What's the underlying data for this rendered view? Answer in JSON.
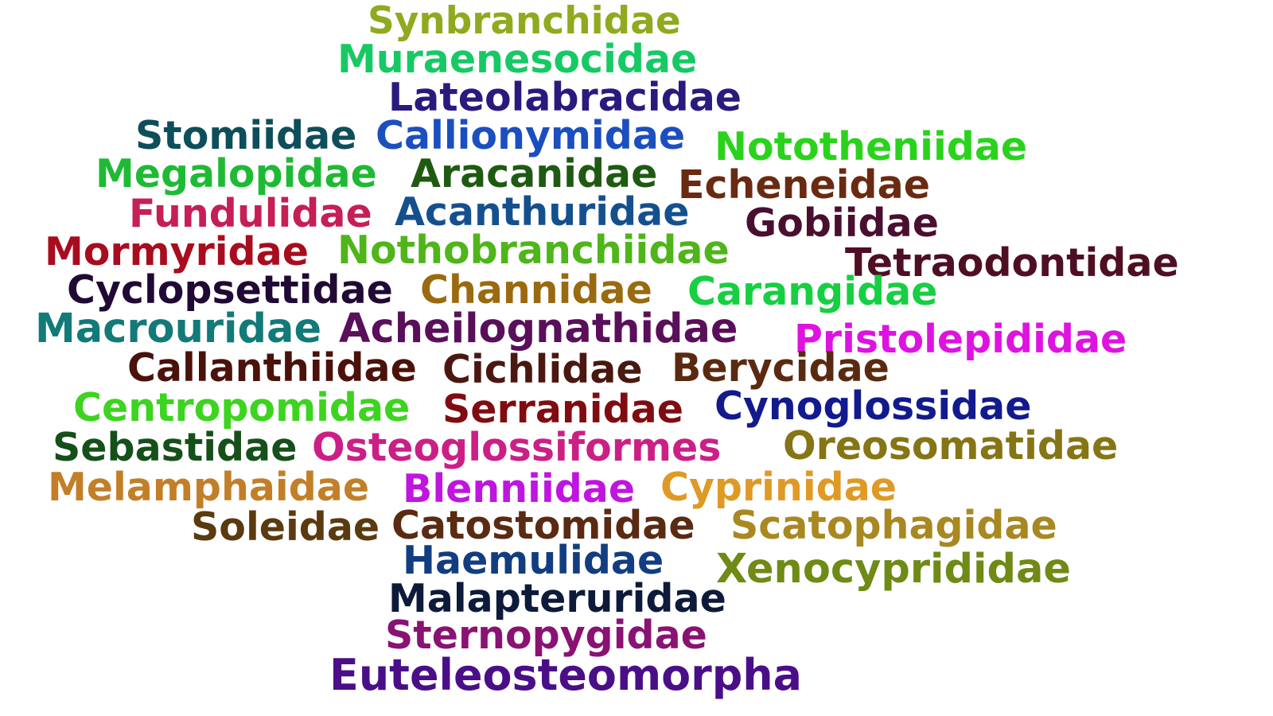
{
  "words": [
    {
      "text": "Synbranchidae",
      "color": "#8faa1f"
    },
    {
      "text": "Muraenesocidae",
      "color": "#17c964"
    },
    {
      "text": "Lateolabracidae",
      "color": "#2a1a7e"
    },
    {
      "text": "Stomiidae",
      "color": "#0e4e5a"
    },
    {
      "text": "Callionymidae",
      "color": "#1b4fc0"
    },
    {
      "text": "Nototheniidae",
      "color": "#2ad31b"
    },
    {
      "text": "Megalopidae",
      "color": "#1fba35"
    },
    {
      "text": "Aracanidae",
      "color": "#1f5a12"
    },
    {
      "text": "Echeneidae",
      "color": "#6a2a12"
    },
    {
      "text": "Fundulidae",
      "color": "#c51f55"
    },
    {
      "text": "Acanthuridae",
      "color": "#15508e"
    },
    {
      "text": "Gobiidae",
      "color": "#4a0f30"
    },
    {
      "text": "Mormyridae",
      "color": "#a80d1f"
    },
    {
      "text": "Nothobranchiidae",
      "color": "#4fb51a"
    },
    {
      "text": "Tetraodontidae",
      "color": "#4f0f22"
    },
    {
      "text": "Cyclopsettidae",
      "color": "#200a35"
    },
    {
      "text": "Channidae",
      "color": "#9a6a10"
    },
    {
      "text": "Carangidae",
      "color": "#17cf42"
    },
    {
      "text": "Macrouridae",
      "color": "#127a78"
    },
    {
      "text": "Acheilognathidae",
      "color": "#5a0f5a"
    },
    {
      "text": "Pristolepididae",
      "color": "#de13e0"
    },
    {
      "text": "Callanthiidae",
      "color": "#4a120a"
    },
    {
      "text": "Cichlidae",
      "color": "#4a1810"
    },
    {
      "text": "Berycidae",
      "color": "#5a2a10"
    },
    {
      "text": "Centropomidae",
      "color": "#3cd41f"
    },
    {
      "text": "Serranidae",
      "color": "#800c12"
    },
    {
      "text": "Cynoglossidae",
      "color": "#121a8e"
    },
    {
      "text": "Sebastidae",
      "color": "#15501a"
    },
    {
      "text": "Osteoglossiformes",
      "color": "#cc1f86"
    },
    {
      "text": "Oreosomatidae",
      "color": "#857514"
    },
    {
      "text": "Melamphaidae",
      "color": "#c27f28"
    },
    {
      "text": "Blenniidae",
      "color": "#c015df"
    },
    {
      "text": "Cyprinidae",
      "color": "#df9a25"
    },
    {
      "text": "Soleidae",
      "color": "#5a3a0f"
    },
    {
      "text": "Catostomidae",
      "color": "#5a2a12"
    },
    {
      "text": "Scatophagidae",
      "color": "#a88820"
    },
    {
      "text": "Haemulidae",
      "color": "#123d80"
    },
    {
      "text": "Xenocyprididae",
      "color": "#6f8a15"
    },
    {
      "text": "Malapteruridae",
      "color": "#0d1a3a"
    },
    {
      "text": "Sternopygidae",
      "color": "#8a1272"
    },
    {
      "text": "Euteleosteomorpha",
      "color": "#4a0f88"
    }
  ]
}
